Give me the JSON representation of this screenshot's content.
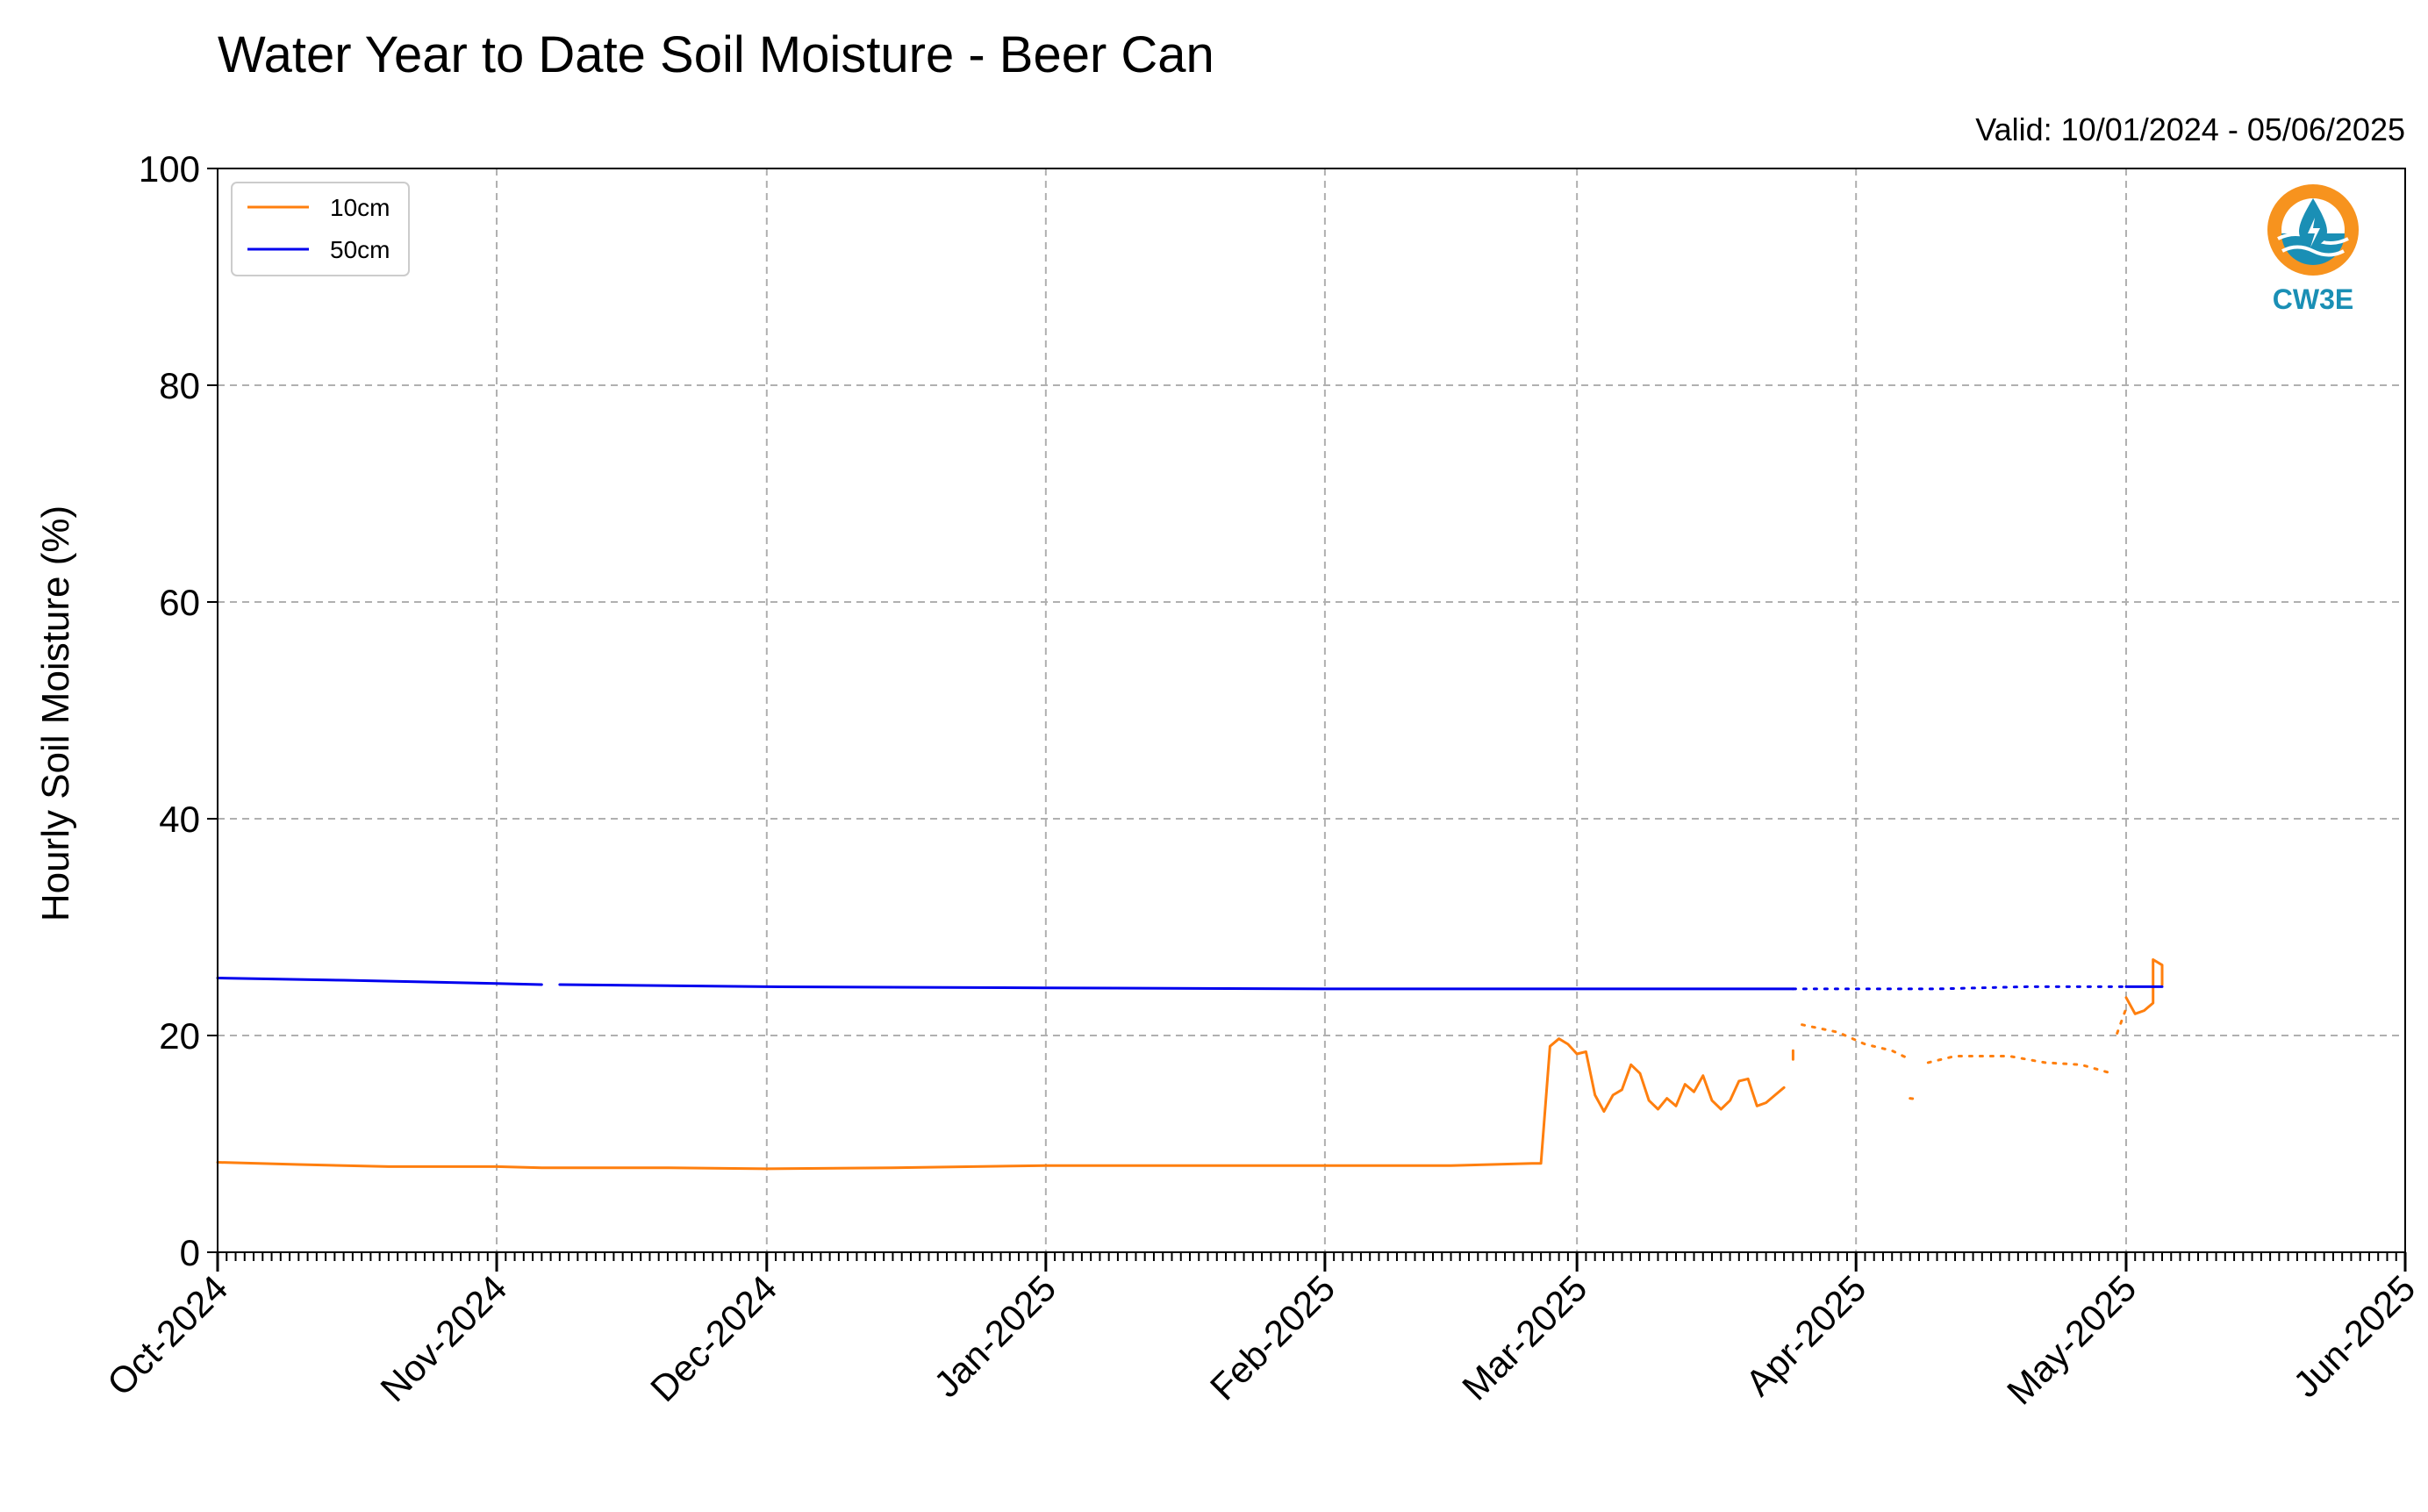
{
  "chart_data": {
    "type": "line",
    "title": "Water Year to Date Soil Moisture - Beer Can",
    "subtitle": "Valid: 10/01/2024 - 05/06/2025",
    "xlabel": "",
    "ylabel": "Hourly Soil Moisture (%)",
    "ylim": [
      0,
      100
    ],
    "yticks": [
      0,
      20,
      40,
      60,
      80,
      100
    ],
    "xlim": [
      "2024-10-01",
      "2025-06-01"
    ],
    "xticks": [
      {
        "date": "2024-10-01",
        "label": "Oct-2024"
      },
      {
        "date": "2024-11-01",
        "label": "Nov-2024"
      },
      {
        "date": "2024-12-01",
        "label": "Dec-2024"
      },
      {
        "date": "2025-01-01",
        "label": "Jan-2025"
      },
      {
        "date": "2025-02-01",
        "label": "Feb-2025"
      },
      {
        "date": "2025-03-01",
        "label": "Mar-2025"
      },
      {
        "date": "2025-04-01",
        "label": "Apr-2025"
      },
      {
        "date": "2025-05-01",
        "label": "May-2025"
      },
      {
        "date": "2025-06-01",
        "label": "Jun-2025"
      }
    ],
    "grid": true,
    "legend": "top-left",
    "series": [
      {
        "name": "10cm",
        "color": "#ff7f0e",
        "segments": [
          {
            "style": "solid",
            "points": [
              [
                "2024-10-01",
                8.3
              ],
              [
                "2024-10-10",
                8.1
              ],
              [
                "2024-10-20",
                7.9
              ],
              [
                "2024-11-01",
                7.9
              ],
              [
                "2024-11-06",
                7.8
              ],
              [
                "2024-11-08",
                7.8
              ],
              [
                "2024-11-20",
                7.8
              ],
              [
                "2024-12-01",
                7.7
              ],
              [
                "2024-12-15",
                7.8
              ],
              [
                "2025-01-01",
                8.0
              ],
              [
                "2025-01-15",
                8.0
              ],
              [
                "2025-02-01",
                8.0
              ],
              [
                "2025-02-15",
                8.0
              ],
              [
                "2025-02-24",
                8.2
              ],
              [
                "2025-02-25",
                8.2
              ],
              [
                "2025-02-26",
                19.0
              ],
              [
                "2025-02-27",
                19.7
              ],
              [
                "2025-02-28",
                19.2
              ],
              [
                "2025-03-01",
                18.3
              ],
              [
                "2025-03-02",
                18.5
              ],
              [
                "2025-03-03",
                14.5
              ],
              [
                "2025-03-04",
                13.0
              ],
              [
                "2025-03-05",
                14.5
              ],
              [
                "2025-03-06",
                15.0
              ],
              [
                "2025-03-07",
                17.3
              ],
              [
                "2025-03-08",
                16.5
              ],
              [
                "2025-03-09",
                14.0
              ],
              [
                "2025-03-10",
                13.2
              ],
              [
                "2025-03-11",
                14.2
              ],
              [
                "2025-03-12",
                13.5
              ],
              [
                "2025-03-13",
                15.5
              ],
              [
                "2025-03-14",
                14.8
              ],
              [
                "2025-03-15",
                16.3
              ],
              [
                "2025-03-16",
                14.0
              ],
              [
                "2025-03-17",
                13.2
              ],
              [
                "2025-03-18",
                14.0
              ],
              [
                "2025-03-19",
                15.8
              ],
              [
                "2025-03-20",
                16.0
              ],
              [
                "2025-03-21",
                13.5
              ],
              [
                "2025-03-22",
                13.8
              ],
              [
                "2025-03-23",
                14.5
              ],
              [
                "2025-03-24",
                15.2
              ]
            ]
          },
          {
            "style": "solid",
            "points": [
              [
                "2025-03-25",
                17.8
              ],
              [
                "2025-03-25",
                18.6
              ]
            ]
          },
          {
            "style": "dotted",
            "points": [
              [
                "2025-03-26",
                21.0
              ],
              [
                "2025-03-30",
                20.3
              ],
              [
                "2025-04-02",
                19.2
              ],
              [
                "2025-04-05",
                18.6
              ],
              [
                "2025-04-07",
                17.8
              ]
            ]
          },
          {
            "style": "dotted",
            "points": [
              [
                "2025-04-07",
                14.2
              ],
              [
                "2025-04-08",
                14.1
              ]
            ]
          },
          {
            "style": "dotted",
            "points": [
              [
                "2025-04-09",
                17.5
              ],
              [
                "2025-04-12",
                18.1
              ],
              [
                "2025-04-18",
                18.1
              ],
              [
                "2025-04-22",
                17.5
              ],
              [
                "2025-04-26",
                17.3
              ],
              [
                "2025-04-29",
                16.6
              ]
            ]
          },
          {
            "style": "dotted",
            "points": [
              [
                "2025-04-30",
                20.2
              ],
              [
                "2025-05-01",
                22.5
              ]
            ]
          },
          {
            "style": "solid",
            "points": [
              [
                "2025-05-01",
                23.5
              ],
              [
                "2025-05-02",
                22.0
              ],
              [
                "2025-05-03",
                22.3
              ],
              [
                "2025-05-04",
                23.0
              ],
              [
                "2025-05-04",
                27.0
              ],
              [
                "2025-05-05",
                26.5
              ],
              [
                "2025-05-05",
                24.7
              ]
            ]
          }
        ]
      },
      {
        "name": "50cm",
        "color": "#0000ee",
        "segments": [
          {
            "style": "solid",
            "points": [
              [
                "2024-10-01",
                25.3
              ],
              [
                "2024-10-15",
                25.1
              ],
              [
                "2024-11-01",
                24.8
              ],
              [
                "2024-11-06",
                24.7
              ]
            ]
          },
          {
            "style": "solid",
            "points": [
              [
                "2024-11-08",
                24.7
              ],
              [
                "2024-12-01",
                24.5
              ],
              [
                "2025-01-01",
                24.4
              ],
              [
                "2025-02-01",
                24.3
              ],
              [
                "2025-03-01",
                24.3
              ],
              [
                "2025-03-25",
                24.3
              ]
            ]
          },
          {
            "style": "dotted",
            "points": [
              [
                "2025-03-25",
                24.3
              ],
              [
                "2025-04-10",
                24.3
              ],
              [
                "2025-04-20",
                24.5
              ],
              [
                "2025-05-01",
                24.5
              ]
            ]
          },
          {
            "style": "solid",
            "points": [
              [
                "2025-05-01",
                24.5
              ],
              [
                "2025-05-05",
                24.5
              ]
            ]
          }
        ]
      }
    ]
  },
  "logo": {
    "text": "CW3E",
    "ring_color": "#f7931e",
    "wave_color": "#1a8fb5",
    "icon": "cw3e-logo-icon"
  }
}
